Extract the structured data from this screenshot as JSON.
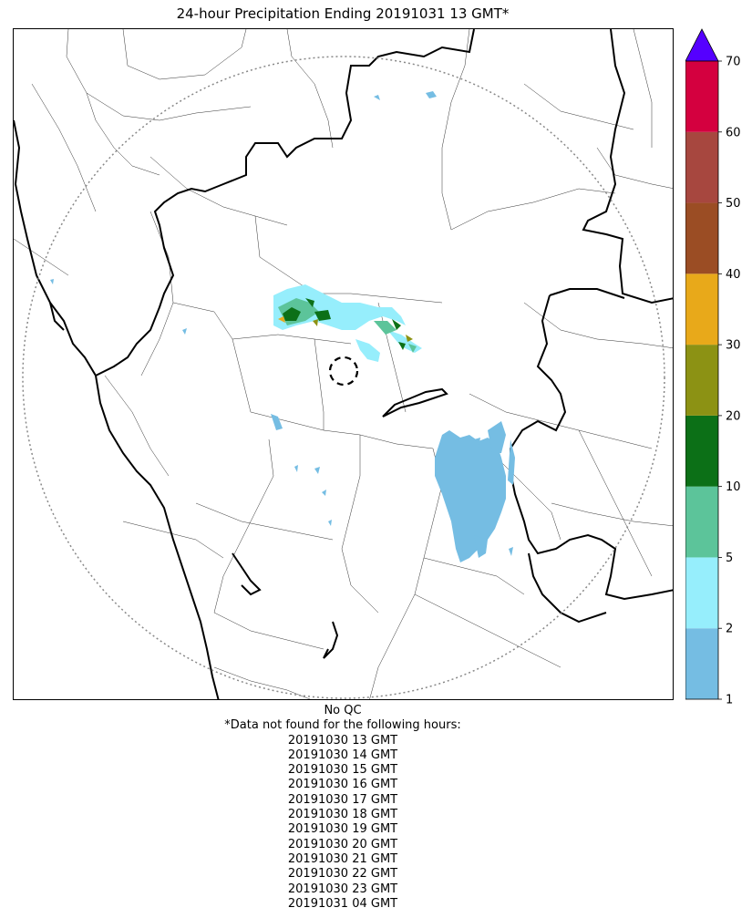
{
  "title": "24-hour Precipitation Ending 20191031 13 GMT*",
  "qc_note": "No QC",
  "missing_header": "*Data not found for the following hours:",
  "missing_hours": [
    "20191030 13 GMT",
    "20191030 14 GMT",
    "20191030 15 GMT",
    "20191030 16 GMT",
    "20191030 17 GMT",
    "20191030 18 GMT",
    "20191030 19 GMT",
    "20191030 20 GMT",
    "20191030 21 GMT",
    "20191030 22 GMT",
    "20191030 23 GMT",
    "20191031 04 GMT"
  ],
  "colorbar": {
    "ticks": [
      "1",
      "2",
      "5",
      "10",
      "20",
      "30",
      "40",
      "50",
      "60",
      "70"
    ],
    "colors": [
      "#75bde3",
      "#96eefc",
      "#5cc49a",
      "#0c7017",
      "#8c9214",
      "#e8a91a",
      "#9b4d24",
      "#a7473f",
      "#d4003f"
    ],
    "extend_color": "#5500ff"
  },
  "map_colors": {
    "light_rain": "#75bde3",
    "moderate_rain": "#96eefc",
    "green": "#5cc49a",
    "dark_green": "#0c7017",
    "olive": "#8c9214",
    "orange": "#e8a91a"
  }
}
